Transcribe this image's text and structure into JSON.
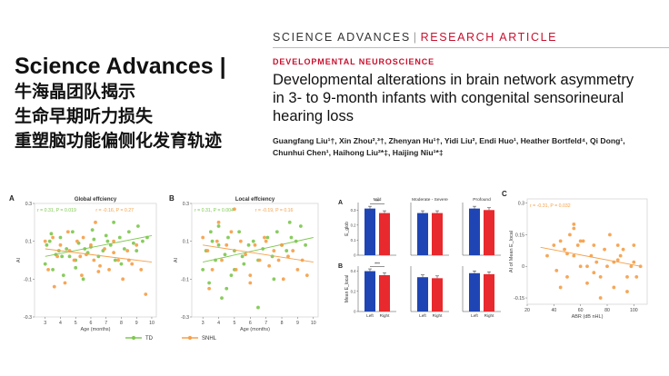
{
  "left": {
    "title_en": "Science Advances |",
    "title_zh": [
      "牛海晶团队揭示",
      "生命早期听力损失",
      "重塑脑功能偏侧化发育轨迹"
    ]
  },
  "article": {
    "journal": "SCIENCE ADVANCES",
    "separator": "|",
    "type": "RESEARCH ARTICLE",
    "section": "DEVELOPMENTAL NEUROSCIENCE",
    "headline": [
      "Developmental alterations in brain network asymmetry",
      "in 3- to 9-month infants with congenital sensorineural",
      "hearing loss"
    ],
    "authors": [
      "Guangfang Liu¹†, Xin Zhou²,³†, Zhenyan Hu¹†, Yidi Liu², Endi Huo¹, Heather Bortfeld⁴, Qi Dong¹,",
      "Chunhui Chen¹, Haihong Liu²*‡, Haijing Niu¹*‡"
    ]
  },
  "colors": {
    "td": "#7ec850",
    "snhl": "#f5a04a",
    "bar_blue": "#1f45b5",
    "bar_red": "#e8292d",
    "accent_red": "#c8102e"
  },
  "chart_data": [
    {
      "type": "scatter",
      "panel": "A",
      "title": "Global effciency",
      "xlabel": "Age (months)",
      "ylabel": "AI",
      "xlim": [
        2.3,
        10.3
      ],
      "ylim": [
        -0.3,
        0.3
      ],
      "xticks": [
        3,
        4,
        5,
        6,
        7,
        8,
        9,
        10
      ],
      "yticks": [
        -0.3,
        -0.1,
        0.1,
        0.3
      ],
      "annotations": [
        {
          "text": "r = 0.31, P = 0.019",
          "color": "td"
        },
        {
          "text": "r = -0.16, P = 0.27",
          "color": "snhl"
        }
      ],
      "series": [
        {
          "name": "TD",
          "color": "td",
          "x": [
            3.0,
            3.1,
            3.3,
            3.5,
            3.7,
            3.9,
            4.0,
            4.2,
            4.4,
            4.6,
            4.8,
            5.0,
            5.2,
            5.5,
            5.8,
            6.0,
            6.2,
            6.5,
            6.8,
            7.0,
            7.3,
            7.6,
            7.9,
            8.2,
            8.5,
            8.8,
            9.1,
            9.4,
            9.7,
            4.1,
            5.0,
            6.1,
            7.1,
            8.0,
            9.0,
            3.4,
            5.6,
            7.5
          ],
          "y": [
            -0.02,
            0.08,
            0.1,
            -0.05,
            0.03,
            0.05,
            0.12,
            -0.08,
            0.06,
            0.02,
            0.15,
            0.0,
            0.09,
            -0.1,
            0.04,
            0.07,
            0.11,
            0.02,
            0.05,
            0.13,
            0.08,
            0.0,
            0.12,
            0.06,
            0.15,
            0.09,
            0.18,
            0.1,
            0.12,
            0.02,
            -0.04,
            0.16,
            0.1,
            -0.02,
            0.05,
            0.14,
            0.06,
            0.2
          ],
          "trend": [
            [
              3.0,
              0.02
            ],
            [
              10.0,
              0.13
            ]
          ]
        },
        {
          "name": "SNHL",
          "color": "snhl",
          "x": [
            3.0,
            3.2,
            3.5,
            3.8,
            4.0,
            4.3,
            4.6,
            4.9,
            5.1,
            5.4,
            5.7,
            6.0,
            6.3,
            6.6,
            6.9,
            7.2,
            7.5,
            7.8,
            8.1,
            8.4,
            8.7,
            9.0,
            9.3,
            9.6,
            4.5,
            5.5,
            6.5,
            7.5,
            8.5,
            6.2,
            3.6,
            5.3
          ],
          "y": [
            0.1,
            -0.05,
            0.12,
            0.02,
            0.08,
            -0.12,
            0.05,
            0.0,
            0.1,
            -0.08,
            0.03,
            0.08,
            0.2,
            -0.03,
            0.06,
            -0.05,
            0.1,
            0.0,
            -0.1,
            0.05,
            -0.02,
            0.08,
            -0.05,
            -0.18,
            0.15,
            0.12,
            -0.06,
            0.04,
            0.0,
            0.0,
            -0.14,
            0.02
          ],
          "trend": [
            [
              3.0,
              0.06
            ],
            [
              10.0,
              -0.01
            ]
          ]
        }
      ]
    },
    {
      "type": "scatter",
      "panel": "B",
      "title": "Local effciency",
      "xlabel": "Age (months)",
      "ylabel": "AI",
      "xlim": [
        2.3,
        10.3
      ],
      "ylim": [
        -0.3,
        0.3
      ],
      "xticks": [
        3,
        4,
        5,
        6,
        7,
        8,
        9,
        10
      ],
      "yticks": [
        -0.3,
        -0.1,
        0.1,
        0.3
      ],
      "annotations": [
        {
          "text": "r = 0.31, P = 0.004",
          "color": "td"
        },
        {
          "text": "r = -0.19, P = 0.16",
          "color": "snhl"
        }
      ],
      "series": [
        {
          "name": "TD",
          "color": "td",
          "x": [
            3.0,
            3.2,
            3.4,
            3.6,
            3.8,
            4.0,
            4.2,
            4.4,
            4.6,
            4.8,
            5.0,
            5.3,
            5.6,
            5.9,
            6.2,
            6.5,
            6.8,
            7.1,
            7.4,
            7.7,
            8.0,
            8.3,
            8.6,
            8.9,
            9.2,
            9.5,
            3.5,
            4.5,
            5.5,
            6.5,
            7.5,
            8.5,
            5.0,
            4.0
          ],
          "y": [
            -0.05,
            0.05,
            -0.12,
            0.1,
            0.0,
            0.08,
            -0.2,
            0.03,
            0.12,
            -0.08,
            0.05,
            0.15,
            -0.02,
            0.08,
            0.1,
            -0.25,
            0.06,
            0.12,
            0.02,
            0.15,
            0.08,
            0.05,
            0.12,
            0.1,
            0.18,
            0.08,
            0.15,
            -0.15,
            0.02,
            0.0,
            -0.1,
            0.2,
            -0.05,
            0.18
          ],
          "trend": [
            [
              3.0,
              -0.01
            ],
            [
              10.0,
              0.12
            ]
          ]
        },
        {
          "name": "SNHL",
          "color": "snhl",
          "x": [
            3.0,
            3.3,
            3.6,
            3.9,
            4.2,
            4.5,
            4.8,
            5.1,
            5.4,
            5.7,
            6.0,
            6.3,
            6.6,
            6.9,
            7.2,
            7.5,
            7.8,
            8.1,
            8.4,
            8.7,
            9.0,
            9.3,
            9.6,
            4.0,
            5.0,
            6.0,
            7.0,
            8.0,
            3.4
          ],
          "y": [
            0.12,
            0.05,
            -0.05,
            0.1,
            0.0,
            0.08,
            0.15,
            -0.05,
            0.1,
            0.03,
            -0.08,
            0.08,
            0.0,
            0.12,
            -0.03,
            0.05,
            0.0,
            -0.1,
            0.02,
            0.05,
            -0.05,
            0.0,
            -0.08,
            0.2,
            0.27,
            -0.12,
            0.1,
            0.08,
            -0.15
          ],
          "trend": [
            [
              3.0,
              0.08
            ],
            [
              10.0,
              -0.01
            ]
          ]
        }
      ]
    },
    {
      "type": "bar",
      "panel": "A",
      "ylabel": "E_glob",
      "groups": [
        "Mild",
        "Moderate - Severe",
        "Profound"
      ],
      "categories": [
        "Left",
        "Right"
      ],
      "ylim": [
        0,
        0.35
      ],
      "yticks": [
        0,
        0.1,
        0.2,
        0.3
      ],
      "values": [
        [
          0.31,
          0.28
        ],
        [
          0.28,
          0.28
        ],
        [
          0.31,
          0.3
        ]
      ],
      "significance": [
        {
          "group": 0,
          "text": "**"
        }
      ]
    },
    {
      "type": "bar",
      "panel": "B",
      "ylabel": "Mean E_local",
      "groups": [
        "Mild",
        "Moderate - Severe",
        "Profound"
      ],
      "categories": [
        "Left",
        "Right"
      ],
      "ylim": [
        0,
        0.45
      ],
      "yticks": [
        0,
        0.2,
        0.4
      ],
      "values": [
        [
          0.4,
          0.36
        ],
        [
          0.34,
          0.33
        ],
        [
          0.38,
          0.37
        ]
      ],
      "significance": [
        {
          "group": 0,
          "text": "***"
        }
      ]
    },
    {
      "type": "scatter",
      "panel": "C",
      "xlabel": "ABR (dB nHL)",
      "ylabel": "AI of Mean E_local",
      "xlim": [
        20,
        110
      ],
      "ylim": [
        -0.18,
        0.32
      ],
      "xticks": [
        20,
        40,
        60,
        80,
        100
      ],
      "yticks": [
        -0.15,
        0.0,
        0.15,
        0.3
      ],
      "annotations": [
        {
          "text": "r = -0.31, P = 0.032",
          "color": "snhl"
        }
      ],
      "series": [
        {
          "name": "SNHL",
          "color": "snhl",
          "x": [
            35,
            40,
            42,
            45,
            48,
            50,
            52,
            55,
            55,
            58,
            60,
            62,
            65,
            68,
            70,
            72,
            75,
            78,
            80,
            82,
            85,
            88,
            90,
            92,
            95,
            98,
            100,
            100,
            102,
            105,
            45,
            55,
            65,
            75,
            85,
            95,
            60,
            70,
            88,
            50
          ],
          "y": [
            0.05,
            0.1,
            -0.02,
            0.12,
            0.08,
            -0.05,
            0.15,
            0.18,
            0.05,
            0.1,
            0.0,
            0.12,
            -0.08,
            0.05,
            0.1,
            0.02,
            -0.05,
            0.08,
            0.0,
            0.15,
            -0.1,
            0.03,
            0.05,
            0.08,
            -0.12,
            0.0,
            0.1,
            0.02,
            -0.05,
            0.0,
            -0.1,
            0.2,
            0.0,
            -0.15,
            0.02,
            -0.05,
            0.12,
            -0.03,
            0.1,
            0.06
          ],
          "trend": [
            [
              30,
              0.09
            ],
            [
              105,
              0.0
            ]
          ]
        }
      ]
    }
  ]
}
